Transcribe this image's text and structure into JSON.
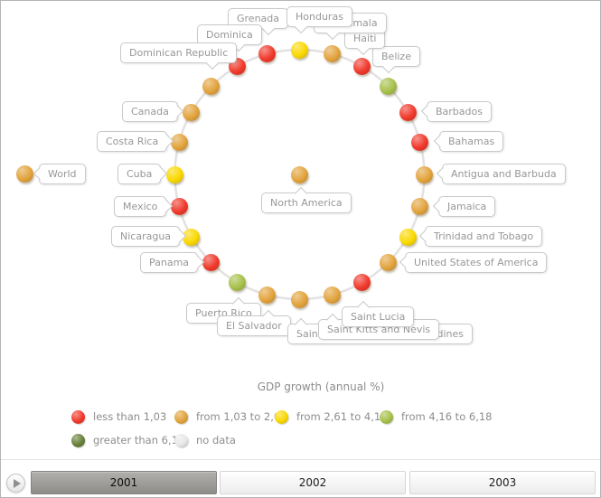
{
  "page": {
    "background": "#ffffff",
    "border_color": "#b4b4b4"
  },
  "chart_data": {
    "type": "radial-node-chart",
    "legend_title": "GDP growth (annual %)",
    "legend_position": "bottom",
    "center_node": {
      "name": "North America",
      "category": "from_1_03_to_2_61"
    },
    "side_node": {
      "name": "World",
      "category": "from_1_03_to_2_61"
    },
    "nodes": [
      {
        "name": "Honduras",
        "category": "from_2_61_to_4_16"
      },
      {
        "name": "Guatemala",
        "category": "from_1_03_to_2_61"
      },
      {
        "name": "Haiti",
        "category": "less_than_1_03"
      },
      {
        "name": "Belize",
        "category": "from_4_16_to_6_18"
      },
      {
        "name": "Barbados",
        "category": "less_than_1_03"
      },
      {
        "name": "Bahamas",
        "category": "less_than_1_03"
      },
      {
        "name": "Antigua and Barbuda",
        "category": "from_1_03_to_2_61"
      },
      {
        "name": "Jamaica",
        "category": "from_1_03_to_2_61"
      },
      {
        "name": "Trinidad and Tobago",
        "category": "from_2_61_to_4_16"
      },
      {
        "name": "United States of America",
        "category": "from_1_03_to_2_61"
      },
      {
        "name": "Saint Lucia",
        "category": "less_than_1_03"
      },
      {
        "name": "Saint Kitts and Nevis",
        "category": "from_1_03_to_2_61"
      },
      {
        "name": "Saint Vincent and the Grenadines",
        "category": "from_1_03_to_2_61"
      },
      {
        "name": "El Salvador",
        "category": "from_1_03_to_2_61"
      },
      {
        "name": "Puerto Rico",
        "category": "from_4_16_to_6_18"
      },
      {
        "name": "Panama",
        "category": "less_than_1_03"
      },
      {
        "name": "Nicaragua",
        "category": "from_2_61_to_4_16"
      },
      {
        "name": "Mexico",
        "category": "less_than_1_03"
      },
      {
        "name": "Cuba",
        "category": "from_2_61_to_4_16"
      },
      {
        "name": "Costa Rica",
        "category": "from_1_03_to_2_61"
      },
      {
        "name": "Canada",
        "category": "from_1_03_to_2_61"
      },
      {
        "name": "Dominican Republic",
        "category": "from_1_03_to_2_61"
      },
      {
        "name": "Dominica",
        "category": "less_than_1_03"
      },
      {
        "name": "Grenada",
        "category": "less_than_1_03"
      }
    ],
    "categories": [
      {
        "key": "less_than_1_03",
        "label": "less than 1,03",
        "color": "#f0392b"
      },
      {
        "key": "from_1_03_to_2_61",
        "label": "from 1,03 to 2,61",
        "color": "#e2a33c"
      },
      {
        "key": "from_2_61_to_4_16",
        "label": "from 2,61 to 4,16",
        "color": "#fad800"
      },
      {
        "key": "from_4_16_to_6_18",
        "label": "from 4,16 to 6,18",
        "color": "#a6c04a"
      },
      {
        "key": "greater_than_6_18",
        "label": "greater than 6,18",
        "color": "#68803a"
      },
      {
        "key": "no_data",
        "label": "no data",
        "color": "#e9e9e9"
      }
    ],
    "timeline": {
      "years": [
        "2001",
        "2002",
        "2003"
      ],
      "selected_year": "2001",
      "play_icon": "play-triangle"
    }
  }
}
